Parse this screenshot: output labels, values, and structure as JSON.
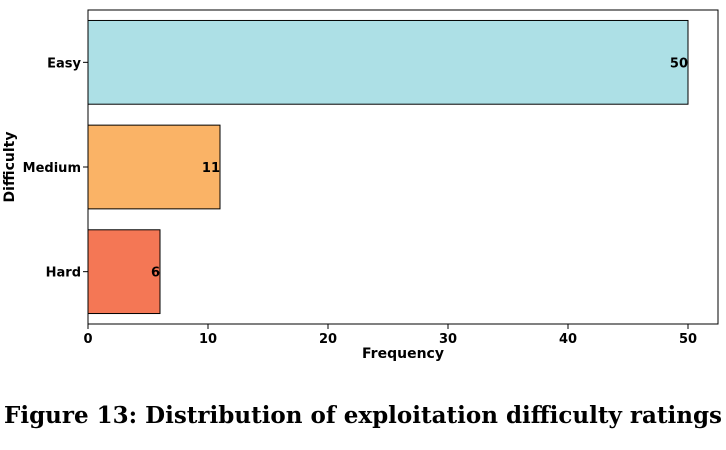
{
  "caption": "Figure 13: Distribution of exploitation difficulty ratings",
  "chart_data": {
    "type": "bar",
    "orientation": "horizontal",
    "categories": [
      "Easy",
      "Medium",
      "Hard"
    ],
    "values": [
      50,
      11,
      6
    ],
    "colors": [
      "#ade0e6",
      "#fab366",
      "#f47755"
    ],
    "data_labels": [
      "50",
      "11",
      "6"
    ],
    "xlabel": "Frequency",
    "ylabel": "Difficulty",
    "xlim": [
      0,
      52.5
    ],
    "xticks": [
      0,
      10,
      20,
      30,
      40,
      50
    ],
    "grid": false,
    "legend": "none"
  }
}
